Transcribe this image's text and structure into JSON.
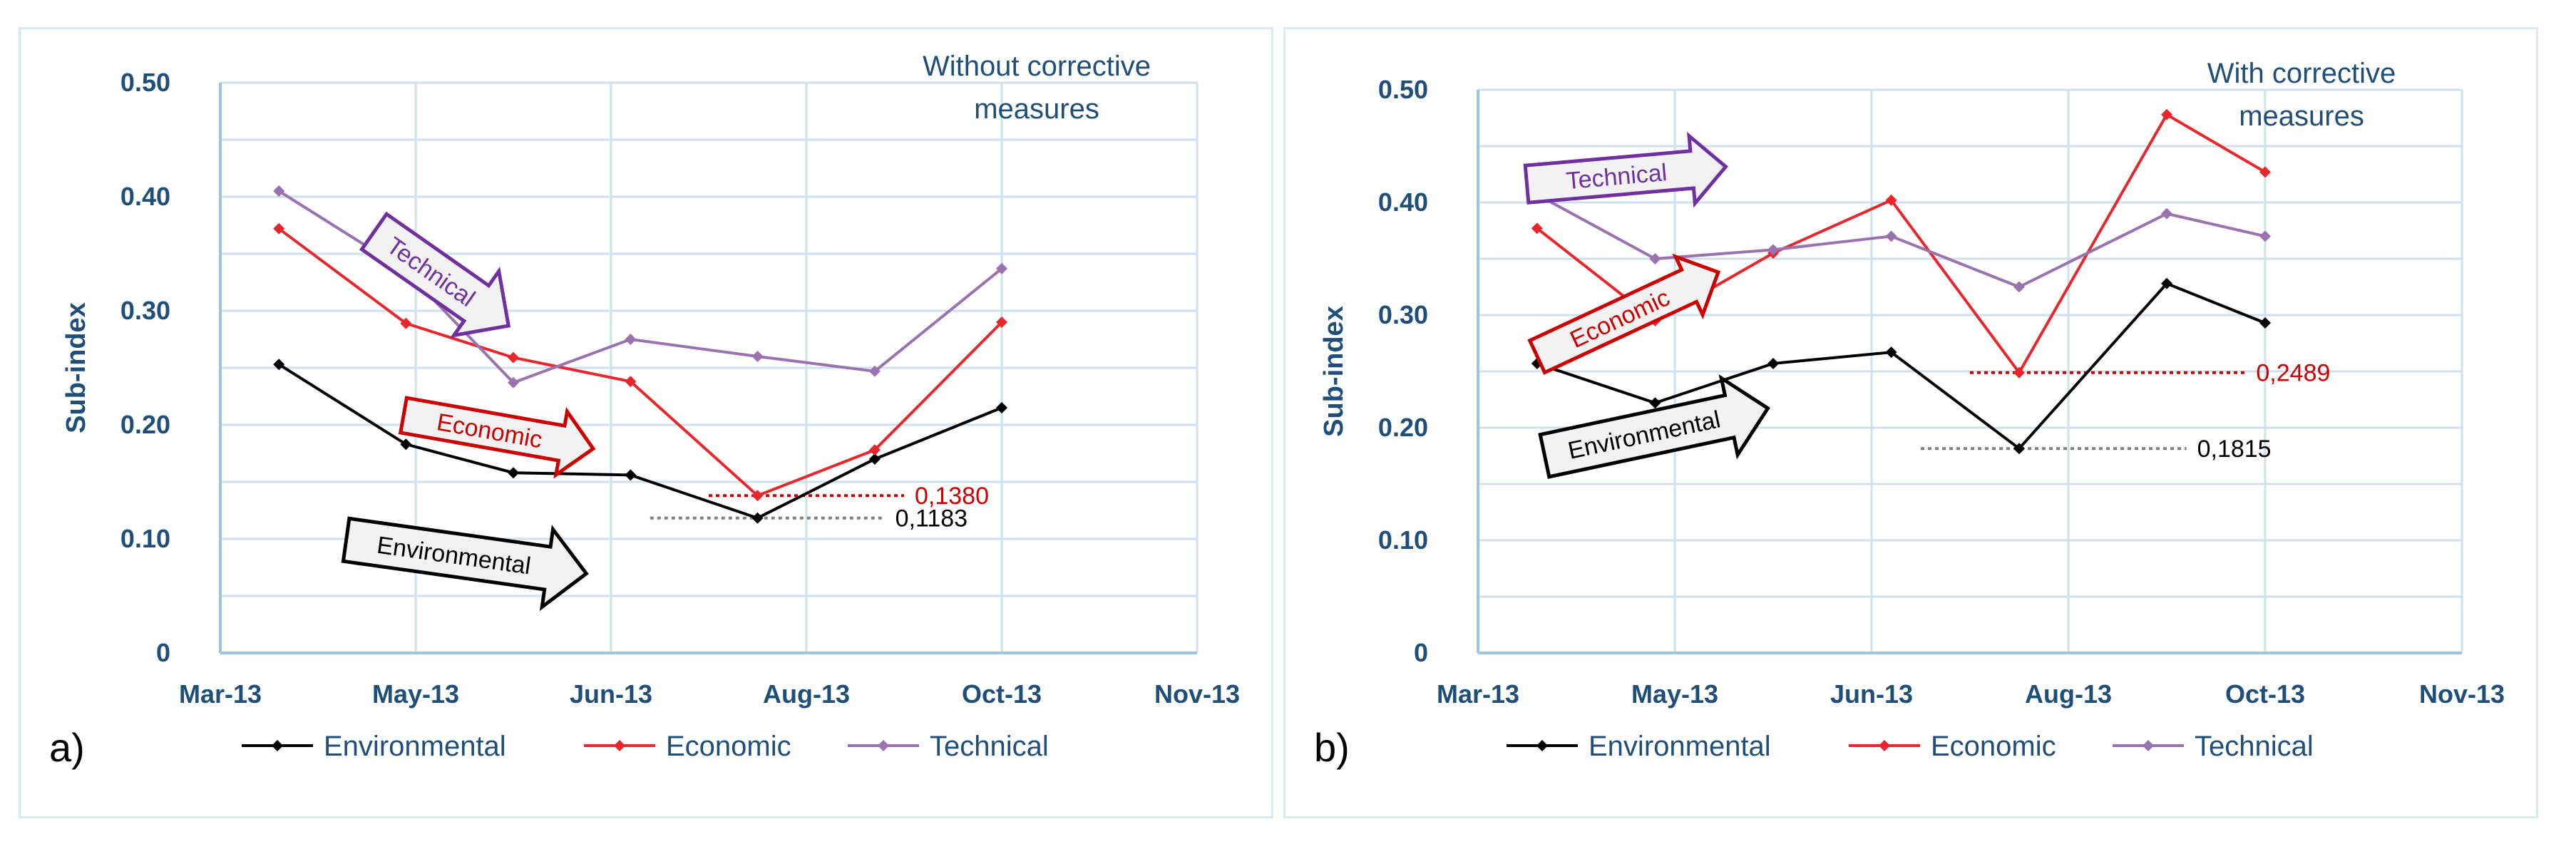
{
  "chart_data": [
    {
      "panel_label": "a)",
      "type": "line",
      "note": [
        "Without corrective",
        "measures"
      ],
      "ylabel": "Sub-index",
      "xlabel": "",
      "ylim": [
        0,
        0.5
      ],
      "yticks": [
        {
          "v": 0,
          "label": "0"
        },
        {
          "v": 0.1,
          "label": "0.10"
        },
        {
          "v": 0.2,
          "label": "0.20"
        },
        {
          "v": 0.3,
          "label": "0.30"
        },
        {
          "v": 0.4,
          "label": "0.40"
        },
        {
          "v": 0.5,
          "label": "0.50"
        }
      ],
      "x_ticks": [
        "Mar-13",
        "May-13",
        "Jun-13",
        "Aug-13",
        "Oct-13",
        "Nov-13"
      ],
      "x_tick_pos": [
        0,
        2,
        4,
        6,
        8,
        10
      ],
      "grid": true,
      "series": [
        {
          "name": "Environmental",
          "color": "#000000",
          "x": [
            0.6,
            1.9,
            3.0,
            4.2,
            5.5,
            6.7,
            8.0
          ],
          "values": [
            0.253,
            0.183,
            0.158,
            0.156,
            0.1183,
            0.17,
            0.215
          ]
        },
        {
          "name": "Economic",
          "color": "#e8262c",
          "x": [
            0.6,
            1.9,
            3.0,
            4.2,
            5.5,
            6.7,
            8.0
          ],
          "values": [
            0.372,
            0.289,
            0.259,
            0.238,
            0.138,
            0.178,
            0.29
          ]
        },
        {
          "name": "Technical",
          "color": "#9b72b0",
          "x": [
            0.6,
            1.9,
            3.0,
            4.2,
            5.5,
            6.7,
            8.0
          ],
          "values": [
            0.405,
            0.335,
            0.237,
            0.275,
            0.26,
            0.247,
            0.337
          ]
        }
      ],
      "reference_lines": [
        {
          "value": 0.138,
          "label": "0,1380",
          "color": "#cc0000",
          "x_from": 5.0,
          "x_to": 7.0
        },
        {
          "value": 0.1183,
          "label": "0,1183",
          "color": "#000000",
          "x_from": 4.4,
          "x_to": 6.8
        }
      ],
      "arrows": [
        {
          "label": "Technical",
          "color": "#7030a0"
        },
        {
          "label": "Economic",
          "color": "#cc0000"
        },
        {
          "label": "Environmental",
          "color": "#000000"
        }
      ]
    },
    {
      "panel_label": "b)",
      "type": "line",
      "note": [
        "With corrective",
        "measures"
      ],
      "ylabel": "Sub-index",
      "xlabel": "",
      "ylim": [
        0,
        0.5
      ],
      "yticks": [
        {
          "v": 0,
          "label": "0"
        },
        {
          "v": 0.1,
          "label": "0.10"
        },
        {
          "v": 0.2,
          "label": "0.20"
        },
        {
          "v": 0.3,
          "label": "0.30"
        },
        {
          "v": 0.4,
          "label": "0.40"
        },
        {
          "v": 0.5,
          "label": "0.50"
        }
      ],
      "x_ticks": [
        "Mar-13",
        "May-13",
        "Jun-13",
        "Aug-13",
        "Oct-13",
        "Nov-13"
      ],
      "x_tick_pos": [
        0,
        2,
        4,
        6,
        8,
        10
      ],
      "grid": true,
      "series": [
        {
          "name": "Environmental",
          "color": "#000000",
          "x": [
            0.6,
            1.8,
            3.0,
            4.2,
            5.5,
            7.0,
            8.0
          ],
          "values": [
            0.257,
            0.222,
            0.257,
            0.267,
            0.1815,
            0.328,
            0.293
          ]
        },
        {
          "name": "Economic",
          "color": "#e8262c",
          "x": [
            0.6,
            1.8,
            3.0,
            4.2,
            5.5,
            7.0,
            8.0
          ],
          "values": [
            0.377,
            0.295,
            0.355,
            0.402,
            0.2489,
            0.478,
            0.427
          ]
        },
        {
          "name": "Technical",
          "color": "#9b72b0",
          "x": [
            0.6,
            1.8,
            3.0,
            4.2,
            5.5,
            7.0,
            8.0
          ],
          "values": [
            0.407,
            0.35,
            0.358,
            0.37,
            0.325,
            0.39,
            0.37
          ]
        }
      ],
      "reference_lines": [
        {
          "value": 0.2489,
          "label": "0,2489",
          "color": "#cc0000",
          "x_from": 5.0,
          "x_to": 7.8
        },
        {
          "value": 0.1815,
          "label": "0,1815",
          "color": "#000000",
          "x_from": 4.5,
          "x_to": 7.2
        }
      ],
      "arrows": [
        {
          "label": "Technical",
          "color": "#7030a0"
        },
        {
          "label": "Economic",
          "color": "#cc0000"
        },
        {
          "label": "Environmental",
          "color": "#000000"
        }
      ]
    }
  ]
}
